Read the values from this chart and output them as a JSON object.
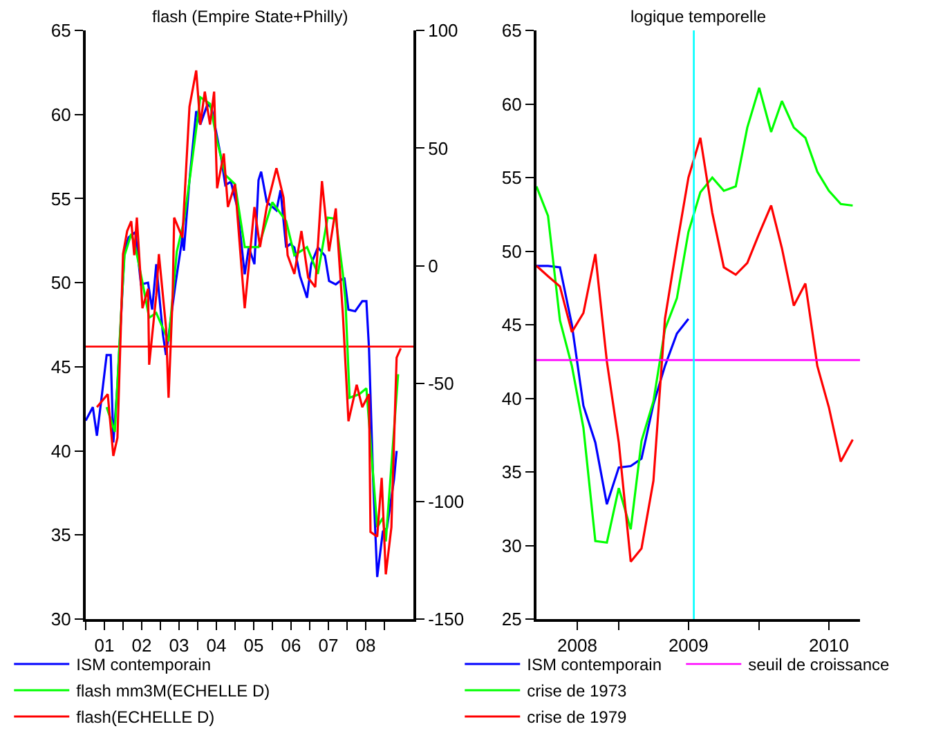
{
  "chart_data": [
    {
      "type": "line",
      "title": "flash (Empire State+Philly)",
      "legend": "bottom",
      "grid": false,
      "xlim": [
        0.5,
        9.28
      ],
      "xticks": [
        {
          "value": 0.5,
          "label": null
        },
        {
          "value": 1,
          "label": "01"
        },
        {
          "value": 1.5,
          "label": null
        },
        {
          "value": 2,
          "label": "02"
        },
        {
          "value": 2.5,
          "label": null
        },
        {
          "value": 3,
          "label": "03"
        },
        {
          "value": 3.5,
          "label": null
        },
        {
          "value": 4,
          "label": "04"
        },
        {
          "value": 4.5,
          "label": null
        },
        {
          "value": 5,
          "label": "05"
        },
        {
          "value": 5.5,
          "label": null
        },
        {
          "value": 6,
          "label": "06"
        },
        {
          "value": 6.5,
          "label": null
        },
        {
          "value": 7,
          "label": "07"
        },
        {
          "value": 7.5,
          "label": null
        },
        {
          "value": 8,
          "label": "08"
        },
        {
          "value": 8.5,
          "label": null
        }
      ],
      "ylim": [
        30,
        65
      ],
      "yticks": [
        30,
        35,
        40,
        45,
        50,
        55,
        60,
        65
      ],
      "y2lim": [
        -150,
        100
      ],
      "y2ticks": [
        -150,
        -100,
        -50,
        0,
        50,
        100
      ],
      "ref_lines": [
        {
          "axis": "y",
          "value": 46.2,
          "color": "#ff0000"
        }
      ],
      "series": [
        {
          "name": "ISM contemporain",
          "color": "#0000ff",
          "x": [
            0.5,
            0.69,
            0.8,
            0.91,
            1.06,
            1.17,
            1.24,
            1.35,
            1.54,
            1.65,
            1.83,
            1.98,
            2.17,
            2.28,
            2.39,
            2.57,
            2.65,
            2.91,
            3.09,
            3.13,
            3.28,
            3.46,
            3.57,
            3.76,
            3.87,
            4.13,
            4.24,
            4.39,
            4.57,
            4.76,
            4.87,
            5.02,
            5.13,
            5.2,
            5.35,
            5.61,
            5.72,
            5.87,
            5.98,
            6.09,
            6.24,
            6.43,
            6.54,
            6.72,
            6.91,
            7.02,
            7.2,
            7.43,
            7.54,
            7.72,
            7.91,
            8.02,
            8.09,
            8.2,
            8.31,
            8.46,
            8.57,
            8.76,
            8.83
          ],
          "values": [
            41.8,
            42.6,
            40.9,
            42.9,
            45.7,
            45.7,
            40.5,
            43.9,
            51.9,
            52.7,
            53.0,
            49.9,
            50.0,
            48.4,
            51.1,
            46.9,
            45.7,
            50.0,
            52.7,
            51.9,
            56.1,
            60.2,
            59.4,
            60.6,
            60.4,
            57.4,
            55.8,
            56.0,
            54.4,
            50.5,
            52.1,
            51.1,
            56.1,
            56.6,
            54.8,
            54.3,
            55.5,
            52.1,
            52.3,
            52.1,
            50.4,
            49.1,
            51.1,
            52.1,
            51.6,
            50.1,
            49.9,
            50.3,
            48.4,
            48.3,
            48.9,
            48.9,
            46.1,
            38.3,
            32.5,
            35.2,
            35.4,
            38.3,
            40.0
          ]
        },
        {
          "name": "flash mm3M(ECHELLE D)",
          "color": "#00ff00",
          "axis": "y2",
          "x": [
            1.06,
            1.28,
            1.46,
            1.54,
            1.72,
            1.83,
            2.02,
            2.2,
            2.39,
            2.72,
            2.94,
            3.13,
            3.28,
            3.57,
            3.83,
            4.02,
            4.24,
            4.5,
            4.76,
            5.13,
            5.5,
            5.87,
            6.09,
            6.43,
            6.72,
            6.98,
            7.2,
            7.39,
            7.46,
            7.57,
            7.83,
            8.02,
            8.31,
            8.46,
            8.54,
            8.87
          ],
          "values": [
            -60,
            -70.5,
            -16.5,
            4.5,
            13.6,
            8,
            -7,
            -22,
            -20,
            -32,
            6,
            19,
            36,
            71.6,
            68.8,
            53,
            38.6,
            34.7,
            8,
            8,
            27,
            19,
            4.5,
            8,
            -3.4,
            20.5,
            20,
            -3.4,
            -15,
            -56,
            -54.5,
            -52,
            -111,
            -107,
            -117,
            -46
          ]
        },
        {
          "name": "flash(ECHELLE D)",
          "color": "#ff0000",
          "axis": "y2",
          "x": [
            0.8,
            1.09,
            1.24,
            1.35,
            1.46,
            1.5,
            1.61,
            1.72,
            1.8,
            1.87,
            2.02,
            2.17,
            2.2,
            2.28,
            2.39,
            2.46,
            2.65,
            2.72,
            2.83,
            2.87,
            3.09,
            3.28,
            3.46,
            3.57,
            3.69,
            3.83,
            3.94,
            4.02,
            4.2,
            4.31,
            4.5,
            4.76,
            5.02,
            5.17,
            5.35,
            5.61,
            5.8,
            5.91,
            6.09,
            6.28,
            6.46,
            6.65,
            6.83,
            7.02,
            7.2,
            7.39,
            7.54,
            7.76,
            7.91,
            8.09,
            8.13,
            8.31,
            8.43,
            8.54,
            8.69,
            8.83,
            8.94
          ],
          "values": [
            -60,
            -54.5,
            -80.7,
            -73,
            -16.5,
            5,
            14.8,
            19,
            4.5,
            20.5,
            -18,
            -9.7,
            -42,
            -29.5,
            -12.5,
            5,
            -26,
            -56,
            -12.5,
            20.5,
            12,
            67.6,
            83,
            60,
            74,
            60,
            74,
            33,
            47.7,
            25,
            34.7,
            -18,
            25,
            8,
            25,
            41.5,
            29,
            4.5,
            -3.4,
            14.8,
            -5,
            -9,
            36,
            6.2,
            24.4,
            -20.5,
            -66,
            -50.5,
            -60,
            -54.5,
            -113,
            -115,
            -90,
            -131,
            -111,
            -39,
            -35
          ]
        }
      ]
    },
    {
      "type": "line",
      "title": "logique temporelle",
      "legend": "bottom",
      "grid": false,
      "xlim": [
        "2008-06-01",
        "2010-09-20"
      ],
      "xticks": [
        {
          "value": "2008-09-15",
          "label": "2008"
        },
        {
          "value": "2009-01-01",
          "label": null
        },
        {
          "value": "2009-07-01",
          "label": "2009"
        },
        {
          "value": "2010-01-01",
          "label": null
        },
        {
          "value": "2010-07-01",
          "label": "2010"
        }
      ],
      "ylim": [
        25,
        65
      ],
      "yticks": [
        25,
        30,
        35,
        40,
        45,
        50,
        55,
        60,
        65
      ],
      "ref_lines": [
        {
          "axis": "y",
          "value": 42.6,
          "label": "seuil de croissance",
          "color": "#ff00ff"
        },
        {
          "axis": "x",
          "value": "2009-07-15",
          "color": "#00ffff"
        }
      ],
      "series": [
        {
          "name": "ISM contemporain",
          "color": "#0000ff",
          "x": [
            "2008-06",
            "2008-07",
            "2008-08",
            "2008-09",
            "2008-10",
            "2008-11",
            "2008-12",
            "2009-01",
            "2009-02",
            "2009-03",
            "2009-04",
            "2009-05",
            "2009-06",
            "2009-07"
          ],
          "values": [
            49.0,
            49.0,
            48.9,
            45.0,
            39.5,
            37.0,
            32.8,
            35.3,
            35.4,
            35.9,
            39.6,
            42.2,
            44.4,
            45.4
          ]
        },
        {
          "name": "crise de 1973",
          "color": "#00ff00",
          "x": [
            "2008-06",
            "2008-07",
            "2008-08",
            "2008-09",
            "2008-10",
            "2008-11",
            "2008-12",
            "2009-01",
            "2009-02",
            "2009-03",
            "2009-04",
            "2009-05",
            "2009-06",
            "2009-07",
            "2009-08",
            "2009-09",
            "2009-10",
            "2009-11",
            "2009-12",
            "2010-01",
            "2010-02",
            "2010-03",
            "2010-04",
            "2010-05",
            "2010-06",
            "2010-07",
            "2010-08",
            "2010-09"
          ],
          "values": [
            54.4,
            52.4,
            45.3,
            42.2,
            38.0,
            30.3,
            30.2,
            33.9,
            31.1,
            37.1,
            39.8,
            44.7,
            46.8,
            51.3,
            54.0,
            55.0,
            54.1,
            54.4,
            58.4,
            61.1,
            58.1,
            60.2,
            58.4,
            57.7,
            55.4,
            54.1,
            53.2,
            53.1
          ]
        },
        {
          "name": "crise de 1979",
          "color": "#ff0000",
          "x": [
            "2008-06",
            "2008-07",
            "2008-08",
            "2008-09",
            "2008-10",
            "2008-11",
            "2008-12",
            "2009-01",
            "2009-02",
            "2009-03",
            "2009-04",
            "2009-05",
            "2009-06",
            "2009-07",
            "2009-08",
            "2009-09",
            "2009-10",
            "2009-11",
            "2009-12",
            "2010-01",
            "2010-02",
            "2010-03",
            "2010-04",
            "2010-05",
            "2010-06",
            "2010-07",
            "2010-08",
            "2010-09"
          ],
          "values": [
            49.0,
            48.3,
            47.6,
            44.5,
            45.8,
            49.8,
            42.5,
            37.0,
            28.9,
            29.8,
            34.4,
            45.4,
            50.4,
            55.0,
            57.7,
            52.6,
            48.9,
            48.4,
            49.2,
            51.2,
            53.1,
            50.2,
            46.3,
            47.8,
            42.2,
            39.4,
            35.7,
            37.2
          ]
        }
      ]
    }
  ]
}
